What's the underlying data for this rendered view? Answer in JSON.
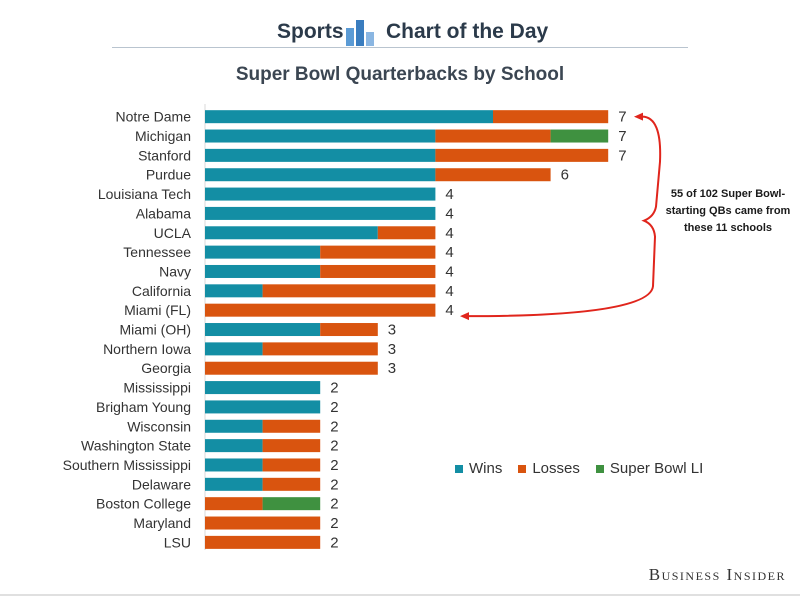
{
  "header": {
    "left": "Sports",
    "right": "Chart of the Day"
  },
  "brand": "Business Insider",
  "annotation": "55 of 102 Super Bowl-starting QBs came from these 11 schools",
  "colors": {
    "wins": "#138ea4",
    "losses": "#d9540f",
    "superbowl": "#3f9140",
    "annotation_arrow": "#e0251c",
    "header_icon": "#5b9bd5"
  },
  "icons": {
    "header": "bar-chart-icon"
  },
  "chart_data": {
    "type": "bar",
    "orientation": "horizontal",
    "stacked": true,
    "title": "Super Bowl Quarterbacks by School",
    "categories": [
      "Notre Dame",
      "Michigan",
      "Stanford",
      "Purdue",
      "Louisiana Tech",
      "Alabama",
      "UCLA",
      "Tennessee",
      "Navy",
      "California",
      "Miami (FL)",
      "Miami (OH)",
      "Northern Iowa",
      "Georgia",
      "Mississippi",
      "Brigham Young",
      "Wisconsin",
      "Washington State",
      "Southern Mississippi",
      "Delaware",
      "Boston College",
      "Maryland",
      "LSU"
    ],
    "series": [
      {
        "name": "Wins",
        "values": [
          5,
          4,
          4,
          4,
          4,
          4,
          3,
          2,
          2,
          1,
          0,
          2,
          1,
          0,
          2,
          2,
          1,
          1,
          1,
          1,
          0,
          0,
          0
        ]
      },
      {
        "name": "Losses",
        "values": [
          2,
          2,
          3,
          2,
          0,
          0,
          1,
          2,
          2,
          3,
          4,
          1,
          2,
          3,
          0,
          0,
          1,
          1,
          1,
          1,
          1,
          2,
          2
        ]
      },
      {
        "name": "Super Bowl LI",
        "values": [
          0,
          1,
          0,
          0,
          0,
          0,
          0,
          0,
          0,
          0,
          0,
          0,
          0,
          0,
          0,
          0,
          0,
          0,
          0,
          0,
          1,
          0,
          0
        ]
      }
    ],
    "totals": [
      7,
      7,
      7,
      6,
      4,
      4,
      4,
      4,
      4,
      4,
      4,
      3,
      3,
      3,
      2,
      2,
      2,
      2,
      2,
      2,
      2,
      2,
      2
    ],
    "xlim": [
      0,
      7
    ],
    "grid": false,
    "legend_position": "bottom-right"
  }
}
